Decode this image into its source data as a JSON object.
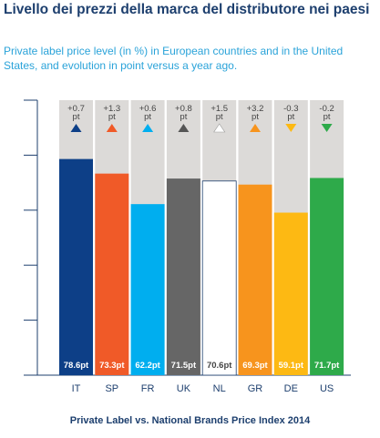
{
  "page": {
    "title": "Livello dei prezzi della marca del distributore nei paesi",
    "subtitle": "Private label price level (in %) in European countries and in the United States, and evolution in point versus a year ago.",
    "caption": "Private Label vs. National Brands Price Index 2014"
  },
  "chart_data": {
    "type": "bar",
    "categories": [
      "IT",
      "SP",
      "FR",
      "UK",
      "NL",
      "GR",
      "DE",
      "US"
    ],
    "values": [
      78.6,
      73.3,
      62.2,
      71.5,
      70.6,
      69.3,
      59.1,
      71.7
    ],
    "value_labels": [
      "78.6pt",
      "73.3pt",
      "62.2pt",
      "71.5pt",
      "70.6pt",
      "69.3pt",
      "59.1pt",
      "71.7pt"
    ],
    "change_labels": [
      "+0.7",
      "+1.3",
      "+0.6",
      "+0.8",
      "+1.5",
      "+3.2",
      "-0.3",
      "-0.2"
    ],
    "change_unit": "pt",
    "change_direction": [
      "up",
      "up",
      "up",
      "up",
      "up",
      "up",
      "down",
      "down"
    ],
    "colors": [
      "#0d3f87",
      "#f05a28",
      "#00aeef",
      "#666666",
      "#ffffff",
      "#f7941d",
      "#fdb913",
      "#2eaa4a"
    ],
    "arrow_colors": [
      "#0d3f87",
      "#f05a28",
      "#00aeef",
      "#555555",
      "#ffffff",
      "#f7941d",
      "#fdb913",
      "#2eaa4a"
    ],
    "ylim": [
      0,
      100
    ],
    "grid": false,
    "background_bar_color": "#dcdad8"
  }
}
